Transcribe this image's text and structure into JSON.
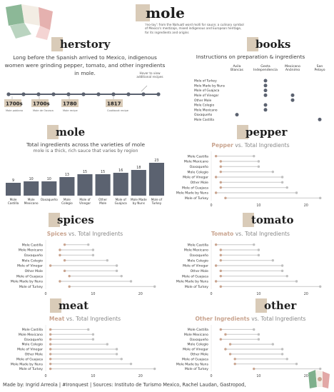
{
  "page": {
    "title": "mole",
    "intro": "'mo-lay': from the Nahuatl word molli for sauce; a culinary symbol of Mexico's mestizaje, mixed indigenous and European heritage, for its ingredients and origins",
    "footer": "Made by: Ingrid Arreola | #Ironquest | Sources: Instituto de Turismo Mexico, Rachel Laudan, Gastropod,"
  },
  "colors": {
    "accent_band": "#d9cbb8",
    "dark_bar": "#5b6270",
    "dot_dark": "#5b6270",
    "dot_light": "#bfbfbf",
    "dot_accent": "#c9a48f",
    "line": "#cfcfcf",
    "flag_green": "#7fb08c",
    "flag_red": "#e2a8a6"
  },
  "herstory": {
    "title": "herstory",
    "text": "Long before the Spanish arrived to Mexico, indigenous women were grinding pepper, tomato, and other ingredients in mole.",
    "note": "Hover to view additional recipes",
    "events": [
      {
        "year": "1700s",
        "desc": "Mole poblano"
      },
      {
        "year": "1700s",
        "desc": "Mole de Oaxaca"
      },
      {
        "year": "1780",
        "desc": "Mole recipe"
      },
      {
        "year": "1817",
        "desc": "Cookbook recipe"
      }
    ]
  },
  "books": {
    "title": "books",
    "subtitle": "Instructions on preparation & ingredients",
    "columns": [
      "Avila Blancas",
      "Gesta Independencia",
      "Mexicano Anónimo",
      "San Pelayo"
    ],
    "rows": [
      "Mole of Turkey",
      "Mole Made by Nuns",
      "Mole of Guajaca",
      "Mole of Vinegar",
      "Other Mole",
      "Mole Colegio",
      "Mole Mexicano",
      "Oaxaqueño",
      "Mole Castilla"
    ],
    "cells": [
      [
        0,
        1
      ],
      [
        1,
        1
      ],
      [
        2,
        1
      ],
      [
        3,
        1
      ],
      [
        3,
        2
      ],
      [
        4,
        2
      ],
      [
        5,
        1
      ],
      [
        6,
        1
      ],
      [
        7,
        0
      ],
      [
        8,
        3
      ]
    ]
  },
  "mole_chart": {
    "title": "mole",
    "chart_title": "Total ingredients across the varieties of mole",
    "chart_subtitle": "mole is a thick, rich sauce that varies by region"
  },
  "dumbbell_titles": {
    "pepper": "pepper",
    "spices": "spices",
    "tomato": "tomato",
    "meat": "meat",
    "other": "other"
  },
  "chart_data": [
    {
      "type": "bar",
      "title": "Total ingredients across the varieties of mole",
      "subtitle": "mole is a thick, rich sauce that varies by region",
      "categories": [
        "Mole Castilla",
        "Mole Mexicano",
        "Oaxaqueño",
        "Mole Colegio",
        "Mole of Vinegar",
        "Other Mole",
        "Mole of Guajaca",
        "Mole Made by Nuns",
        "Mole of Turkey"
      ],
      "values": [
        9,
        10,
        10,
        13,
        15,
        15,
        16,
        18,
        23
      ],
      "ylim": [
        0,
        25
      ]
    },
    {
      "type": "scatter",
      "chart": "pepper",
      "highlight": "Pepper",
      "title_rest": "vs. Total Ingredients",
      "categories": [
        "Mole Castilla",
        "Mole Mexicano",
        "Oaxaqueño",
        "Mole Colegio",
        "Mole of Vinegar",
        "Other Mole",
        "Mole of Guajaca",
        "Mole Made by Nuns",
        "Mole of Turkey"
      ],
      "series": [
        {
          "name": "Pepper",
          "values": [
            1,
            2,
            2,
            2,
            1,
            2,
            2,
            1,
            3
          ]
        },
        {
          "name": "Total Ingredients",
          "values": [
            9,
            10,
            10,
            13,
            15,
            15,
            16,
            18,
            23
          ]
        }
      ],
      "xlim": [
        0,
        25
      ],
      "xticks": [
        0,
        10,
        20
      ]
    },
    {
      "type": "scatter",
      "chart": "spices",
      "highlight": "Spices",
      "title_rest": "vs. Total Ingredients",
      "categories": [
        "Mole Castilla",
        "Mole Mexicano",
        "Oaxaqueño",
        "Mole Colegio",
        "Mole of Vinegar",
        "Other Mole",
        "Mole of Guajaca",
        "Mole Made by Nuns",
        "Mole of Turkey"
      ],
      "series": [
        {
          "name": "Spices",
          "values": [
            4,
            3,
            3,
            4,
            1,
            4,
            5,
            3,
            5
          ]
        },
        {
          "name": "Total Ingredients",
          "values": [
            9,
            10,
            10,
            13,
            15,
            15,
            16,
            18,
            23
          ]
        }
      ],
      "xlim": [
        0,
        25
      ],
      "xticks": [
        0,
        10,
        20
      ]
    },
    {
      "type": "scatter",
      "chart": "tomato",
      "highlight": "Tomato",
      "title_rest": "vs. Total Ingredients",
      "categories": [
        "Mole Castilla",
        "Mole Mexicano",
        "Oaxaqueño",
        "Mole Colegio",
        "Mole of Vinegar",
        "Other Mole",
        "Mole of Guajaca",
        "Mole Made by Nuns",
        "Mole of Turkey"
      ],
      "series": [
        {
          "name": "Tomato",
          "values": [
            1,
            2,
            2,
            2,
            1,
            2,
            2,
            1,
            2
          ]
        },
        {
          "name": "Total Ingredients",
          "values": [
            9,
            10,
            10,
            13,
            15,
            15,
            16,
            18,
            23
          ]
        }
      ],
      "xlim": [
        0,
        25
      ],
      "xticks": [
        0,
        10,
        20
      ]
    },
    {
      "type": "scatter",
      "chart": "meat",
      "highlight": "Meat",
      "title_rest": "vs. Total Ingredients",
      "categories": [
        "Mole Castilla",
        "Mole Mexicano",
        "Oaxaqueño",
        "Mole Colegio",
        "Mole of Vinegar",
        "Other Mole",
        "Mole of Guajaca",
        "Mole Made by Nuns",
        "Mole of Turkey"
      ],
      "series": [
        {
          "name": "Meat",
          "values": [
            1,
            1,
            1,
            1,
            1,
            1,
            1,
            1,
            1
          ]
        },
        {
          "name": "Total Ingredients",
          "values": [
            9,
            10,
            10,
            13,
            15,
            15,
            16,
            18,
            23
          ]
        }
      ],
      "xlim": [
        0,
        25
      ],
      "xticks": [
        0,
        10,
        20
      ]
    },
    {
      "type": "scatter",
      "chart": "other",
      "highlight": "Other Ingredients",
      "title_rest": "vs. Total Ingredients",
      "categories": [
        "Mole Castilla",
        "Mole Mexicano",
        "Oaxaqueño",
        "Mole Colegio",
        "Mole of Vinegar",
        "Other Mole",
        "Mole of Guajaca",
        "Mole Made by Nuns",
        "Mole of Turkey"
      ],
      "series": [
        {
          "name": "Other Ingredients",
          "values": [
            2,
            3,
            2,
            4,
            3,
            4,
            5,
            5,
            9
          ]
        },
        {
          "name": "Total Ingredients",
          "values": [
            9,
            10,
            10,
            13,
            15,
            15,
            16,
            18,
            23
          ]
        }
      ],
      "xlim": [
        0,
        25
      ],
      "xticks": [
        0,
        10,
        20
      ]
    }
  ]
}
